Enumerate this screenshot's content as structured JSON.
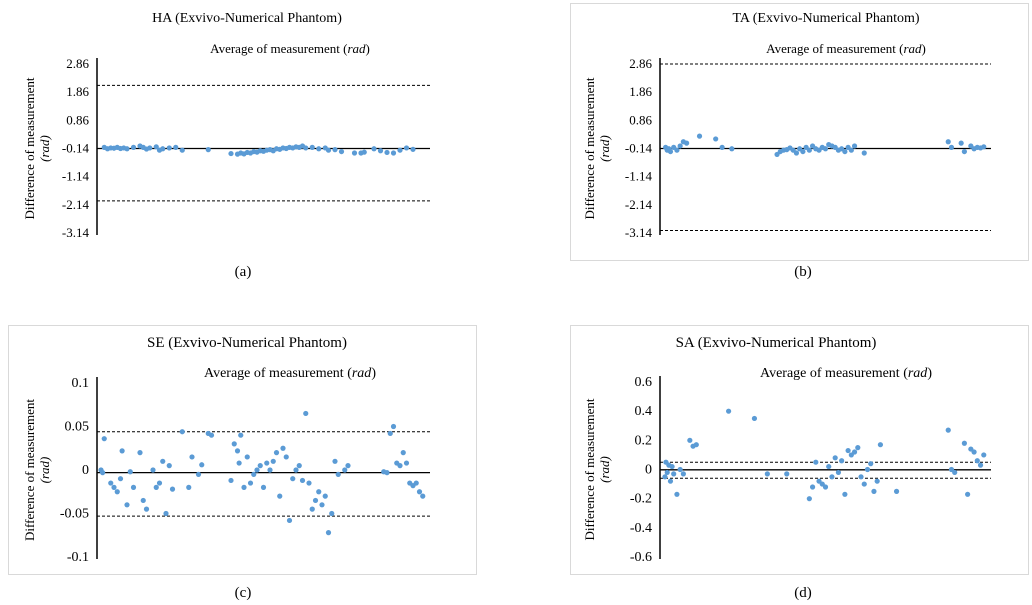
{
  "chart_data": [
    {
      "type": "scatter",
      "title": "HA (Exvivo-Numerical Phantom)",
      "xlabel_main": "Average of measurement ",
      "xlabel_unit": "rad",
      "ylabel_main": "Difference of measurement",
      "ylabel_unit": "(rad)",
      "ylim": [
        -3.14,
        2.86
      ],
      "yticks": [
        "2.86",
        "1.86",
        "0.86",
        "-0.14",
        "-1.14",
        "-2.14",
        "-3.14"
      ],
      "mean_line": -0.14,
      "limits": [
        2.1,
        -2.0
      ],
      "xlim": [
        0,
        100
      ],
      "caption": "(a)",
      "points": [
        [
          1,
          -0.1
        ],
        [
          2,
          -0.15
        ],
        [
          3,
          -0.12
        ],
        [
          4,
          -0.13
        ],
        [
          5,
          -0.1
        ],
        [
          6,
          -0.14
        ],
        [
          7,
          -0.12
        ],
        [
          8,
          -0.15
        ],
        [
          10,
          -0.1
        ],
        [
          12,
          -0.05
        ],
        [
          13,
          -0.1
        ],
        [
          14,
          -0.16
        ],
        [
          15,
          -0.12
        ],
        [
          17,
          -0.08
        ],
        [
          18,
          -0.2
        ],
        [
          19,
          -0.15
        ],
        [
          21,
          -0.12
        ],
        [
          23,
          -0.1
        ],
        [
          25,
          -0.2
        ],
        [
          33,
          -0.18
        ],
        [
          40,
          -0.32
        ],
        [
          42,
          -0.34
        ],
        [
          43,
          -0.3
        ],
        [
          44,
          -0.33
        ],
        [
          45,
          -0.28
        ],
        [
          46,
          -0.3
        ],
        [
          47,
          -0.25
        ],
        [
          48,
          -0.27
        ],
        [
          49,
          -0.22
        ],
        [
          50,
          -0.24
        ],
        [
          51,
          -0.2
        ],
        [
          52,
          -0.18
        ],
        [
          53,
          -0.22
        ],
        [
          54,
          -0.15
        ],
        [
          55,
          -0.17
        ],
        [
          56,
          -0.12
        ],
        [
          57,
          -0.14
        ],
        [
          58,
          -0.1
        ],
        [
          59,
          -0.12
        ],
        [
          60,
          -0.08
        ],
        [
          61,
          -0.1
        ],
        [
          62,
          -0.05
        ],
        [
          63,
          -0.12
        ],
        [
          65,
          -0.1
        ],
        [
          67,
          -0.15
        ],
        [
          69,
          -0.12
        ],
        [
          70,
          -0.2
        ],
        [
          72,
          -0.18
        ],
        [
          74,
          -0.25
        ],
        [
          78,
          -0.3
        ],
        [
          80,
          -0.3
        ],
        [
          81,
          -0.27
        ],
        [
          84,
          -0.15
        ],
        [
          86,
          -0.22
        ],
        [
          88,
          -0.28
        ],
        [
          90,
          -0.3
        ],
        [
          92,
          -0.2
        ],
        [
          94,
          -0.12
        ],
        [
          96,
          -0.17
        ]
      ]
    },
    {
      "type": "scatter",
      "title": "TA (Exvivo-Numerical Phantom)",
      "xlabel_main": "Average of measurement ",
      "xlabel_unit": "rad",
      "ylabel_main": "Difference of measurement",
      "ylabel_unit": "(rad)",
      "ylim": [
        -3.14,
        2.86
      ],
      "yticks": [
        "2.86",
        "1.86",
        "0.86",
        "-0.14",
        "-1.14",
        "-2.14",
        "-3.14"
      ],
      "mean_line": -0.14,
      "limits": [
        2.86,
        -3.05
      ],
      "xlim": [
        0,
        100
      ],
      "caption": "(b)",
      "points": [
        [
          0.5,
          -0.1
        ],
        [
          1,
          -0.2
        ],
        [
          1.5,
          -0.15
        ],
        [
          2,
          -0.25
        ],
        [
          3,
          -0.1
        ],
        [
          4,
          -0.2
        ],
        [
          5,
          -0.05
        ],
        [
          6,
          0.1
        ],
        [
          7,
          0.05
        ],
        [
          11,
          0.3
        ],
        [
          16,
          0.2
        ],
        [
          18,
          -0.1
        ],
        [
          21,
          -0.15
        ],
        [
          40,
          -0.2
        ],
        [
          41,
          -0.3
        ],
        [
          42,
          -0.15
        ],
        [
          43,
          -0.25
        ],
        [
          44,
          -0.1
        ],
        [
          45,
          -0.2
        ],
        [
          46,
          -0.05
        ],
        [
          47,
          -0.15
        ],
        [
          48,
          -0.2
        ],
        [
          49,
          -0.1
        ],
        [
          50,
          -0.15
        ],
        [
          51,
          0.0
        ],
        [
          52,
          -0.05
        ],
        [
          53,
          -0.1
        ],
        [
          54,
          -0.2
        ],
        [
          55,
          -0.15
        ],
        [
          56,
          -0.25
        ],
        [
          57,
          -0.1
        ],
        [
          58,
          -0.2
        ],
        [
          59,
          -0.05
        ],
        [
          62,
          -0.3
        ],
        [
          35,
          -0.35
        ],
        [
          36,
          -0.25
        ],
        [
          37,
          -0.2
        ],
        [
          38,
          -0.18
        ],
        [
          39,
          -0.12
        ],
        [
          88,
          0.1
        ],
        [
          89,
          -0.1
        ],
        [
          92,
          0.05
        ],
        [
          93,
          -0.25
        ],
        [
          95,
          -0.05
        ],
        [
          96,
          -0.15
        ],
        [
          97,
          -0.1
        ],
        [
          98,
          -0.12
        ],
        [
          99,
          -0.08
        ]
      ]
    },
    {
      "type": "scatter",
      "title": "SE (Exvivo-Numerical Phantom)",
      "xlabel_main": "Average of measurement ",
      "xlabel_unit": "rad",
      "ylabel_main": "Difference of measurement",
      "ylabel_unit": "(rad)",
      "ylim": [
        -0.1,
        0.1
      ],
      "yticks": [
        "0.1",
        "0.05",
        "0",
        "-0.05",
        "-0.1"
      ],
      "mean_line": -0.003,
      "limits": [
        0.044,
        -0.053
      ],
      "xlim": [
        0,
        100
      ],
      "caption": "(c)",
      "points": [
        [
          0,
          0.0
        ],
        [
          0.5,
          -0.003
        ],
        [
          1,
          0.036
        ],
        [
          3,
          -0.015
        ],
        [
          4,
          -0.02
        ],
        [
          5,
          -0.025
        ],
        [
          6,
          -0.01
        ],
        [
          6.5,
          0.022
        ],
        [
          8,
          -0.04
        ],
        [
          9,
          -0.002
        ],
        [
          10,
          -0.02
        ],
        [
          12,
          0.02
        ],
        [
          13,
          -0.035
        ],
        [
          14,
          -0.045
        ],
        [
          16,
          0.0
        ],
        [
          17,
          -0.02
        ],
        [
          18,
          -0.015
        ],
        [
          19,
          0.01
        ],
        [
          20,
          -0.05
        ],
        [
          21,
          0.005
        ],
        [
          22,
          -0.022
        ],
        [
          25,
          0.044
        ],
        [
          27,
          -0.02
        ],
        [
          28,
          0.015
        ],
        [
          30,
          -0.005
        ],
        [
          31,
          0.006
        ],
        [
          33,
          0.042
        ],
        [
          34,
          0.04
        ],
        [
          40,
          -0.012
        ],
        [
          41,
          0.03
        ],
        [
          42,
          0.022
        ],
        [
          42.5,
          0.008
        ],
        [
          43,
          0.04
        ],
        [
          44,
          -0.02
        ],
        [
          45,
          0.015
        ],
        [
          46,
          -0.015
        ],
        [
          47,
          -0.005
        ],
        [
          48,
          0.0
        ],
        [
          49,
          0.005
        ],
        [
          50,
          -0.02
        ],
        [
          51,
          0.008
        ],
        [
          52,
          0.0
        ],
        [
          53,
          0.01
        ],
        [
          54,
          0.02
        ],
        [
          55,
          -0.03
        ],
        [
          56,
          0.025
        ],
        [
          57,
          0.015
        ],
        [
          58,
          -0.058
        ],
        [
          59,
          -0.01
        ],
        [
          60,
          0.0
        ],
        [
          61,
          0.005
        ],
        [
          62,
          -0.012
        ],
        [
          63,
          0.065
        ],
        [
          64,
          -0.015
        ],
        [
          65,
          -0.045
        ],
        [
          66,
          -0.035
        ],
        [
          67,
          -0.025
        ],
        [
          68,
          -0.04
        ],
        [
          69,
          -0.03
        ],
        [
          70,
          -0.072
        ],
        [
          71,
          -0.05
        ],
        [
          72,
          0.01
        ],
        [
          73,
          -0.005
        ],
        [
          75,
          0.0
        ],
        [
          76,
          0.005
        ],
        [
          87,
          -0.002
        ],
        [
          88,
          -0.003
        ],
        [
          89,
          0.042
        ],
        [
          90,
          0.05
        ],
        [
          91,
          0.008
        ],
        [
          92,
          0.005
        ],
        [
          93,
          0.02
        ],
        [
          94,
          0.008
        ],
        [
          95,
          -0.015
        ],
        [
          96,
          -0.018
        ],
        [
          97,
          -0.015
        ],
        [
          98,
          -0.025
        ],
        [
          99,
          -0.03
        ]
      ]
    },
    {
      "type": "scatter",
      "title": "SA (Exvivo-Numerical Phantom)",
      "xlabel_main": "Average of measurement ",
      "xlabel_unit": "rad",
      "ylabel_main": "Difference of measurement",
      "ylabel_unit": "(rad)",
      "ylim": [
        -0.6,
        0.6
      ],
      "yticks": [
        "0.6",
        "0.4",
        "0.2",
        "0",
        "-0.2",
        "-0.4",
        "-0.6"
      ],
      "mean_line": -0.002,
      "limits": [
        0.05,
        -0.06
      ],
      "xlim": [
        0,
        100
      ],
      "caption": "(d)",
      "points": [
        [
          0.3,
          -0.05
        ],
        [
          0.6,
          0.05
        ],
        [
          1,
          -0.02
        ],
        [
          1.5,
          0.03
        ],
        [
          2,
          -0.08
        ],
        [
          2.5,
          0.02
        ],
        [
          3,
          -0.03
        ],
        [
          4,
          -0.17
        ],
        [
          5,
          0.0
        ],
        [
          6,
          -0.03
        ],
        [
          8,
          0.2
        ],
        [
          9,
          0.16
        ],
        [
          10,
          0.17
        ],
        [
          20,
          0.4
        ],
        [
          28,
          0.35
        ],
        [
          32,
          -0.03
        ],
        [
          38,
          -0.03
        ],
        [
          45,
          -0.2
        ],
        [
          46,
          -0.12
        ],
        [
          47,
          0.05
        ],
        [
          48,
          -0.08
        ],
        [
          49,
          -0.1
        ],
        [
          50,
          -0.12
        ],
        [
          51,
          0.02
        ],
        [
          52,
          -0.05
        ],
        [
          53,
          0.08
        ],
        [
          54,
          -0.02
        ],
        [
          55,
          0.06
        ],
        [
          56,
          -0.17
        ],
        [
          57,
          0.13
        ],
        [
          58,
          0.1
        ],
        [
          59,
          0.12
        ],
        [
          60,
          0.15
        ],
        [
          61,
          -0.05
        ],
        [
          62,
          -0.1
        ],
        [
          63,
          0.0
        ],
        [
          64,
          0.04
        ],
        [
          65,
          -0.15
        ],
        [
          66,
          -0.08
        ],
        [
          67,
          0.17
        ],
        [
          72,
          -0.15
        ],
        [
          88,
          0.27
        ],
        [
          89,
          0.0
        ],
        [
          90,
          -0.02
        ],
        [
          93,
          0.18
        ],
        [
          94,
          -0.17
        ],
        [
          95,
          0.14
        ],
        [
          96,
          0.12
        ],
        [
          97,
          0.06
        ],
        [
          98,
          0.03
        ],
        [
          99,
          0.1
        ]
      ]
    }
  ]
}
